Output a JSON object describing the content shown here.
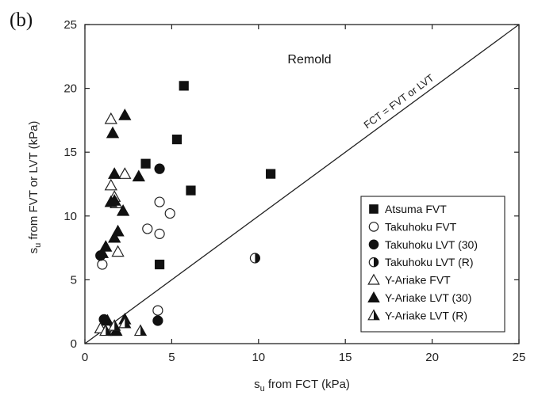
{
  "panel_label": "(b)",
  "chart_data": {
    "type": "scatter",
    "title": "",
    "annotation": "Remold",
    "xlabel": {
      "main": "s",
      "sub": "u",
      "rest": " from FCT (kPa)"
    },
    "ylabel": {
      "main": "s",
      "sub": "u",
      "rest": " from FVT or LVT (kPa)"
    },
    "xlim": [
      0,
      25
    ],
    "ylim": [
      0,
      25
    ],
    "xticks": [
      0,
      5,
      10,
      15,
      20,
      25
    ],
    "yticks": [
      0,
      5,
      10,
      15,
      20,
      25
    ],
    "grid": false,
    "legend_position": "bottom-right",
    "reference_line": {
      "label": "FCT = FVT or LVT",
      "points": [
        [
          0,
          0
        ],
        [
          25,
          25
        ]
      ]
    },
    "series": [
      {
        "name": "Atsuma FVT",
        "marker": "square-filled",
        "points": [
          [
            5.7,
            20.2
          ],
          [
            5.3,
            16.0
          ],
          [
            3.5,
            14.1
          ],
          [
            6.1,
            12.0
          ],
          [
            10.7,
            13.3
          ],
          [
            4.3,
            6.2
          ]
        ]
      },
      {
        "name": "Takuhoku FVT",
        "marker": "circle-open",
        "points": [
          [
            4.3,
            11.1
          ],
          [
            4.9,
            10.2
          ],
          [
            3.6,
            9.0
          ],
          [
            4.3,
            8.6
          ],
          [
            1.0,
            6.2
          ],
          [
            4.2,
            2.6
          ]
        ]
      },
      {
        "name": "Takuhoku LVT (30)",
        "marker": "circle-filled",
        "points": [
          [
            4.3,
            13.7
          ],
          [
            0.9,
            6.9
          ],
          [
            1.1,
            1.9
          ],
          [
            4.2,
            1.8
          ]
        ]
      },
      {
        "name": "Takuhoku LVT (R)",
        "marker": "circle-half",
        "points": [
          [
            9.8,
            6.7
          ]
        ]
      },
      {
        "name": "Y-Ariake FVT",
        "marker": "triangle-open",
        "points": [
          [
            1.5,
            17.6
          ],
          [
            2.3,
            13.3
          ],
          [
            1.5,
            12.4
          ],
          [
            1.7,
            11.5
          ],
          [
            1.8,
            11.0
          ],
          [
            1.9,
            7.2
          ],
          [
            1.3,
            1.3
          ],
          [
            1.7,
            1.0
          ],
          [
            0.9,
            1.2
          ]
        ]
      },
      {
        "name": "Y-Ariake LVT (30)",
        "marker": "triangle-filled",
        "points": [
          [
            2.3,
            17.9
          ],
          [
            1.6,
            16.5
          ],
          [
            1.7,
            13.3
          ],
          [
            3.1,
            13.1
          ],
          [
            1.7,
            11.2
          ],
          [
            1.5,
            11.1
          ],
          [
            2.2,
            10.4
          ],
          [
            1.9,
            8.8
          ],
          [
            1.7,
            8.3
          ],
          [
            1.2,
            7.6
          ],
          [
            1.0,
            7.1
          ],
          [
            1.3,
            1.8
          ],
          [
            2.3,
            1.9
          ],
          [
            1.8,
            1.0
          ]
        ]
      },
      {
        "name": "Y-Ariake LVT (R)",
        "marker": "triangle-half",
        "points": [
          [
            1.2,
            1.0
          ],
          [
            2.3,
            1.6
          ],
          [
            3.2,
            1.0
          ],
          [
            1.7,
            1.4
          ]
        ]
      }
    ]
  }
}
